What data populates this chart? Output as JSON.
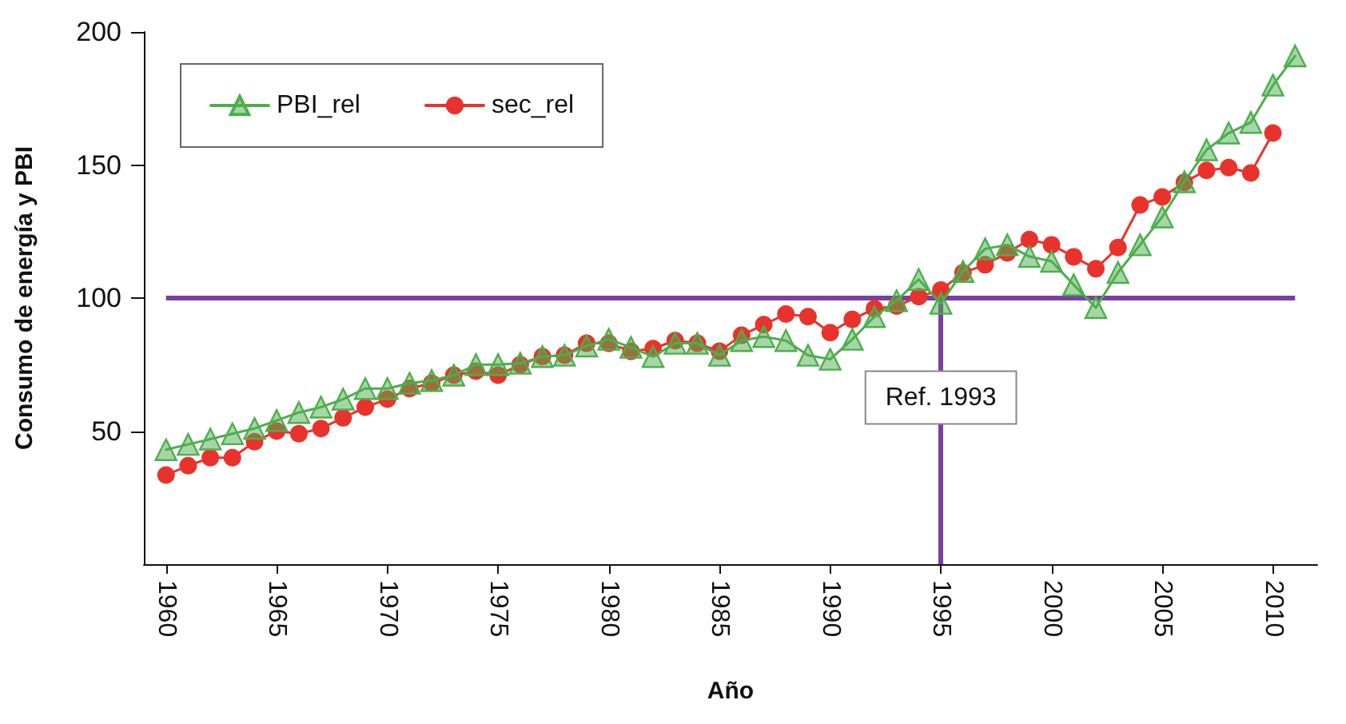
{
  "chart_data": {
    "type": "line",
    "xlabel": "Año",
    "ylabel": "Consumo de energía y PBI",
    "x": [
      1960,
      1961,
      1962,
      1963,
      1964,
      1965,
      1966,
      1967,
      1968,
      1969,
      1970,
      1971,
      1972,
      1973,
      1974,
      1975,
      1976,
      1977,
      1978,
      1979,
      1980,
      1981,
      1982,
      1983,
      1984,
      1985,
      1986,
      1987,
      1988,
      1989,
      1990,
      1991,
      1992,
      1993,
      1994,
      1995,
      1996,
      1997,
      1998,
      1999,
      2000,
      2001,
      2002,
      2003,
      2004,
      2005,
      2006,
      2007,
      2008,
      2009,
      2010,
      2011
    ],
    "series": [
      {
        "name": "PBI_rel",
        "color": "#4cae4c",
        "marker": "triangle",
        "values": [
          43,
          45,
          47,
          49,
          51,
          54,
          57,
          59,
          62,
          66,
          66,
          68,
          69,
          71,
          75,
          75,
          75.5,
          78,
          78.5,
          82,
          84.5,
          81.5,
          78,
          83,
          83,
          78.5,
          84,
          85.5,
          84,
          78.5,
          77,
          84.5,
          93,
          99,
          107,
          98,
          110,
          118.5,
          120,
          115.6,
          113.8,
          105,
          96.4,
          109.6,
          120,
          130.5,
          143.7,
          155.7,
          162,
          166,
          180,
          191
        ]
      },
      {
        "name": "sec_rel",
        "color": "#e8332c",
        "marker": "circle",
        "values": [
          33.5,
          37,
          40,
          40,
          46,
          50,
          49,
          51,
          55,
          59,
          62,
          66,
          68,
          71,
          72.5,
          71,
          75,
          78,
          78.5,
          83,
          83,
          80,
          81,
          84,
          83,
          80,
          86,
          90,
          94,
          93,
          87,
          92,
          96,
          97,
          100.5,
          103,
          109.5,
          112.5,
          117,
          122,
          120,
          115.5,
          111,
          119,
          135,
          138,
          143.5,
          148,
          149,
          147,
          162,
          null
        ]
      }
    ],
    "xlim": [
      1959,
      2012
    ],
    "xticks": [
      1960,
      1965,
      1970,
      1975,
      1980,
      1985,
      1990,
      1995,
      2000,
      2005,
      2010
    ],
    "ylim": [
      0,
      200
    ],
    "yticks": [
      50,
      100,
      150,
      200
    ],
    "ref_lines": [
      {
        "axis": "y",
        "value": 100,
        "color": "#7b3f9e"
      },
      {
        "axis": "x",
        "value": 1995,
        "label": "Ref. 1993",
        "color": "#7b3f9e"
      }
    ],
    "legend": "top left",
    "grid": false,
    "line_style": "solid"
  }
}
